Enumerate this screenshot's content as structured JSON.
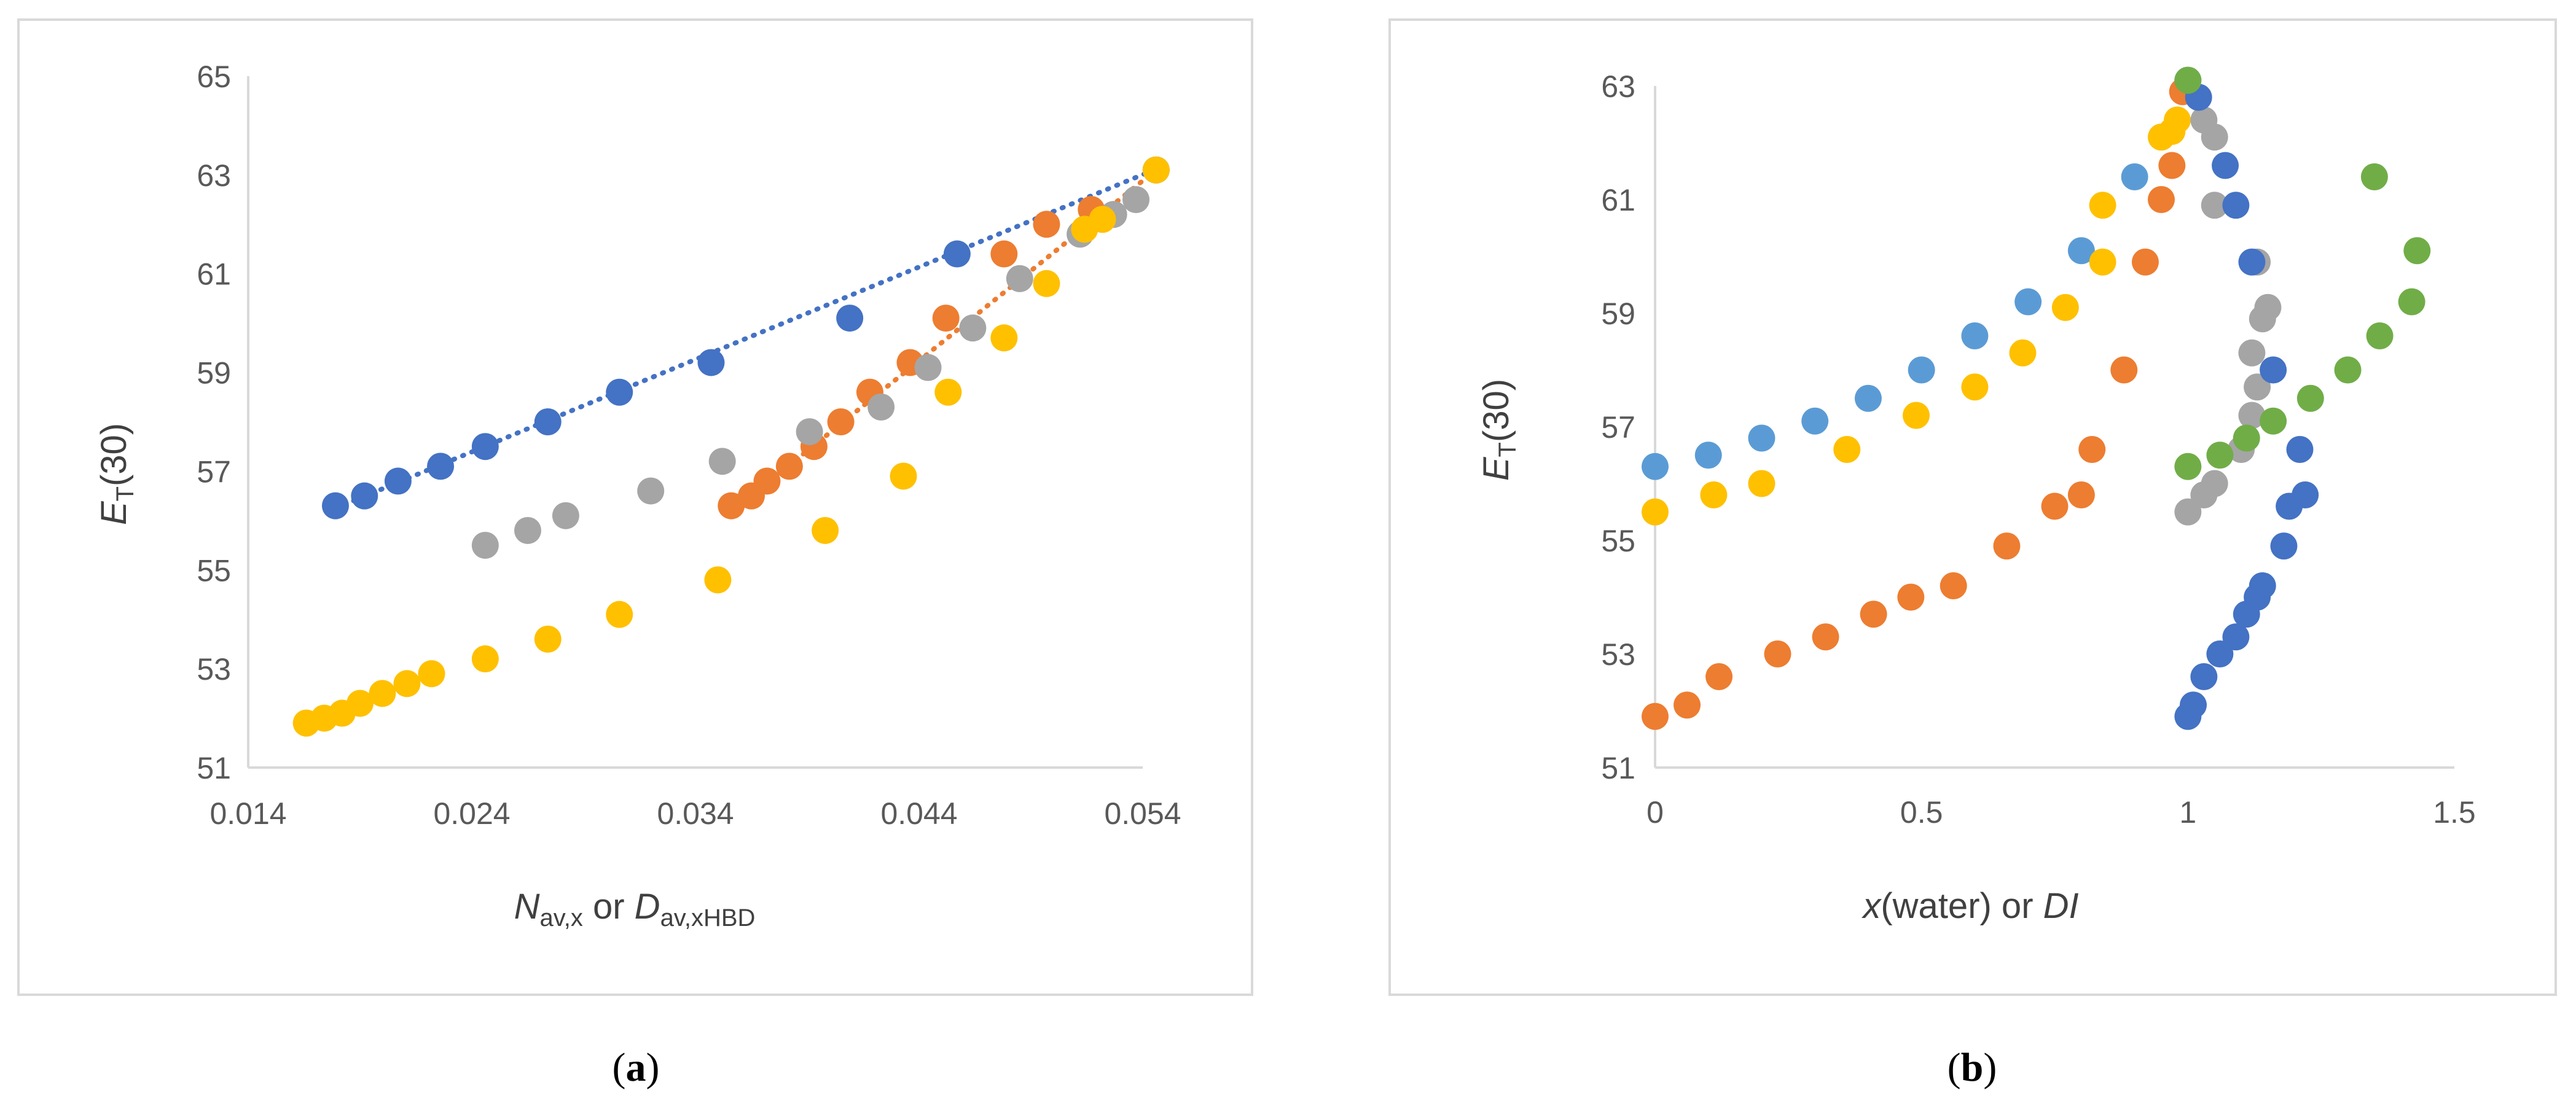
{
  "colors": {
    "blue": "#4472C4",
    "orange": "#ED7D31",
    "gray": "#A5A5A5",
    "yellow": "#FFC000",
    "lightblue": "#5B9BD5",
    "green": "#70AD47",
    "axis": "#D9D9D9",
    "text": "#595959",
    "frame": "#D9D9D9"
  },
  "labels": {
    "panel_a": {
      "open": "(",
      "letter": "a",
      "close": ")"
    },
    "panel_b": {
      "open": "(",
      "letter": "b",
      "close": ")"
    }
  },
  "chart_data": [
    {
      "id": "a",
      "type": "scatter",
      "title": "",
      "xlabel_parts": {
        "n": "N",
        "n_sub": "av,x",
        "mid": " or ",
        "d": "D",
        "d_sub": "av,xHBD"
      },
      "ylabel_parts": {
        "e": "E",
        "e_sub": "T",
        "tail": "(30)"
      },
      "xlim": [
        0.014,
        0.054
      ],
      "ylim": [
        51,
        65
      ],
      "xticks": [
        "0.014",
        "0.024",
        "0.034",
        "0.044",
        "0.054"
      ],
      "yticks": [
        "51",
        "53",
        "55",
        "57",
        "59",
        "61",
        "63",
        "65"
      ],
      "series": [
        {
          "name": "blue",
          "color": "#4472C4",
          "trendline": [
            [
              0.0179,
              56.25
            ],
            [
              0.0545,
              63.1
            ]
          ],
          "x": [
            0.0179,
            0.0192,
            0.0207,
            0.0226,
            0.0246,
            0.0274,
            0.0306,
            0.0347,
            0.0409,
            0.0457,
            0.0546
          ],
          "y": [
            56.3,
            56.5,
            56.8,
            57.1,
            57.5,
            58.0,
            58.6,
            59.2,
            60.1,
            61.4,
            63.1
          ]
        },
        {
          "name": "orange",
          "color": "#ED7D31",
          "trendline": [
            [
              0.0354,
              56.1
            ],
            [
              0.0546,
              63.1
            ]
          ],
          "x": [
            0.0356,
            0.0365,
            0.0372,
            0.0382,
            0.0393,
            0.0405,
            0.0418,
            0.0436,
            0.0452,
            0.0478,
            0.0497,
            0.0517,
            0.0546
          ],
          "y": [
            56.3,
            56.5,
            56.8,
            57.1,
            57.5,
            58.0,
            58.6,
            59.2,
            60.1,
            61.4,
            62.0,
            62.3,
            63.1
          ]
        },
        {
          "name": "gray",
          "color": "#A5A5A5",
          "x": [
            0.0246,
            0.0265,
            0.0282,
            0.032,
            0.0352,
            0.0391,
            0.0423,
            0.0444,
            0.0464,
            0.0485,
            0.0512,
            0.0527,
            0.0537,
            0.0546
          ],
          "y": [
            55.5,
            55.8,
            56.1,
            56.6,
            57.2,
            57.8,
            58.3,
            59.1,
            59.9,
            60.9,
            61.8,
            62.2,
            62.5,
            63.1
          ]
        },
        {
          "name": "yellow",
          "color": "#FFC000",
          "x": [
            0.0166,
            0.0174,
            0.0182,
            0.019,
            0.02,
            0.0211,
            0.0222,
            0.0246,
            0.0274,
            0.0306,
            0.035,
            0.0398,
            0.0433,
            0.0453,
            0.0478,
            0.0497,
            0.0514,
            0.0522,
            0.0546
          ],
          "y": [
            51.9,
            52.0,
            52.1,
            52.3,
            52.5,
            52.7,
            52.9,
            53.2,
            53.6,
            54.1,
            54.8,
            55.8,
            56.9,
            58.6,
            59.7,
            60.8,
            61.9,
            62.1,
            63.1
          ]
        }
      ]
    },
    {
      "id": "b",
      "type": "scatter",
      "title": "",
      "xlabel_parts": {
        "x": "x",
        "mid": "(water) or ",
        "di": "DI"
      },
      "ylabel_parts": {
        "e": "E",
        "e_sub": "T",
        "tail": "(30)"
      },
      "xlim": [
        0,
        1.5
      ],
      "ylim": [
        51,
        63
      ],
      "xticks": [
        "0",
        "0.5",
        "1",
        "1.5"
      ],
      "yticks": [
        "51",
        "53",
        "55",
        "57",
        "59",
        "61",
        "63"
      ],
      "series": [
        {
          "name": "lightblue",
          "color": "#5B9BD5",
          "x": [
            0,
            0.1,
            0.2,
            0.3,
            0.4,
            0.5,
            0.6,
            0.7,
            0.8,
            0.9,
            1.0
          ],
          "y": [
            56.3,
            56.5,
            56.8,
            57.1,
            57.5,
            58.0,
            58.6,
            59.2,
            60.1,
            61.4,
            63.1
          ]
        },
        {
          "name": "orange",
          "color": "#ED7D31",
          "x": [
            0,
            0.06,
            0.12,
            0.23,
            0.32,
            0.41,
            0.48,
            0.56,
            0.66,
            0.75,
            0.8,
            0.82,
            0.88,
            0.92,
            0.95,
            0.97,
            0.99
          ],
          "y": [
            51.9,
            52.1,
            52.6,
            53.0,
            53.3,
            53.7,
            54.0,
            54.2,
            54.9,
            55.6,
            55.8,
            56.6,
            58.0,
            59.9,
            61.0,
            61.6,
            62.9
          ]
        },
        {
          "name": "yellow",
          "color": "#FFC000",
          "x": [
            0,
            0.11,
            0.2,
            0.36,
            0.49,
            0.6,
            0.69,
            0.77,
            0.84,
            0.84,
            0.95,
            0.97,
            0.98
          ],
          "y": [
            55.5,
            55.8,
            56.0,
            56.6,
            57.2,
            57.7,
            58.3,
            59.1,
            59.9,
            60.9,
            62.1,
            62.2,
            62.4
          ]
        },
        {
          "name": "gray",
          "color": "#A5A5A5",
          "x": [
            1.0,
            1.03,
            1.05,
            1.1,
            1.12,
            1.13,
            1.12,
            1.14,
            1.15,
            1.13,
            1.05,
            1.03,
            1.05
          ],
          "y": [
            55.5,
            55.8,
            56.0,
            56.6,
            57.2,
            57.7,
            58.3,
            58.9,
            59.1,
            59.9,
            60.9,
            62.4,
            62.1
          ]
        },
        {
          "name": "blue",
          "color": "#4472C4",
          "x": [
            1.0,
            1.01,
            1.03,
            1.06,
            1.09,
            1.11,
            1.13,
            1.14,
            1.18,
            1.19,
            1.21,
            1.22,
            1.16,
            1.12,
            1.09,
            1.07,
            1.02
          ],
          "y": [
            51.9,
            52.1,
            52.6,
            53.0,
            53.3,
            53.7,
            54.0,
            54.2,
            54.9,
            55.6,
            56.6,
            55.8,
            58.0,
            59.9,
            60.9,
            61.6,
            62.8
          ]
        },
        {
          "name": "green",
          "color": "#70AD47",
          "x": [
            1.0,
            1.06,
            1.11,
            1.16,
            1.23,
            1.3,
            1.36,
            1.42,
            1.43,
            1.35,
            1.0
          ],
          "y": [
            56.3,
            56.5,
            56.8,
            57.1,
            57.5,
            58.0,
            58.6,
            59.2,
            60.1,
            61.4,
            63.1
          ]
        }
      ]
    }
  ]
}
